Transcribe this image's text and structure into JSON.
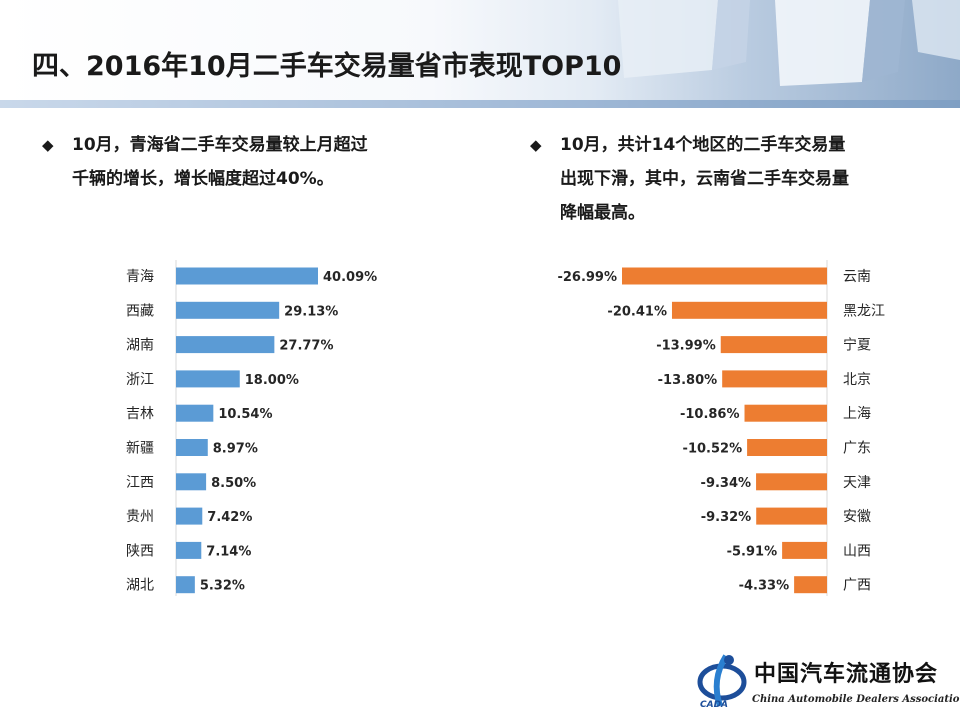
{
  "header": {
    "title": "四、2016年10月二手车交易量省市表现TOP10"
  },
  "bullets": {
    "left": {
      "lines": [
        "10月，青海省二手车交易量较上月超过",
        "千辆的增长，增长幅度超过40%。"
      ]
    },
    "right": {
      "lines": [
        "10月，共计14个地区的二手车交易量",
        "出现下滑，其中，云南省二手车交易量",
        "降幅最高。"
      ]
    }
  },
  "colors": {
    "increase_bar": "#5b9bd5",
    "decrease_bar": "#ed7d31",
    "axis": "#d9d9d9"
  },
  "icons": {
    "bullet": "diamond-icon",
    "logo": "cada-logo-icon"
  },
  "logo": {
    "name": "中国汽车流通协会",
    "english": "China Automobile Dealers Association",
    "abbr": "CADA"
  },
  "chart_data": [
    {
      "type": "bar",
      "orientation": "horizontal",
      "categories": [
        "青海",
        "西藏",
        "湖南",
        "浙江",
        "吉林",
        "新疆",
        "江西",
        "贵州",
        "陕西",
        "湖北"
      ],
      "values": [
        40.09,
        29.13,
        27.77,
        18.0,
        10.54,
        8.97,
        8.5,
        7.42,
        7.14,
        5.32
      ],
      "labels": [
        "40.09%",
        "29.13%",
        "27.77%",
        "18.00%",
        "10.54%",
        "8.97%",
        "8.50%",
        "7.42%",
        "7.14%",
        "5.32%"
      ],
      "unit": "%",
      "xlim": [
        0,
        40.09
      ],
      "grid": false,
      "legend": "none",
      "color": "#5b9bd5"
    },
    {
      "type": "bar",
      "orientation": "horizontal",
      "categories": [
        "云南",
        "黑龙江",
        "宁夏",
        "北京",
        "上海",
        "广东",
        "天津",
        "安徽",
        "山西",
        "广西"
      ],
      "values": [
        -26.99,
        -20.41,
        -13.99,
        -13.8,
        -10.86,
        -10.52,
        -9.34,
        -9.32,
        -5.91,
        -4.33
      ],
      "labels": [
        "-26.99%",
        "-20.41%",
        "-13.99%",
        "-13.80%",
        "-10.86%",
        "-10.52%",
        "-9.34%",
        "-9.32%",
        "-5.91%",
        "-4.33%"
      ],
      "unit": "%",
      "xlim": [
        -26.99,
        0
      ],
      "grid": false,
      "legend": "none",
      "color": "#ed7d31"
    }
  ]
}
